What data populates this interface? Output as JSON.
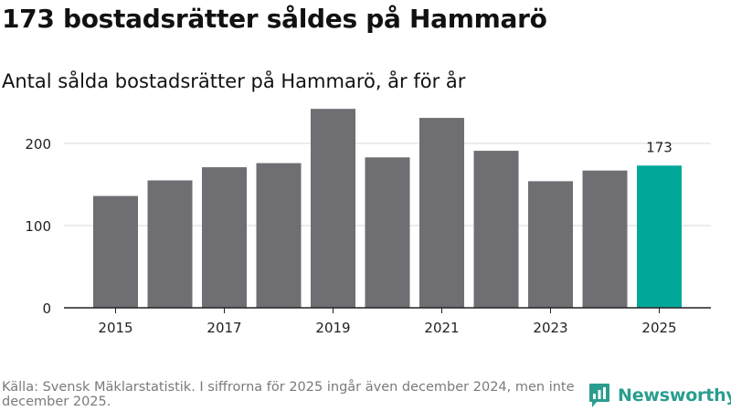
{
  "title": "173 bostadsrätter såldes på Hammarö",
  "subtitle": "Antal sålda bostadsrätter på Hammarö, år för år",
  "footer": {
    "source": "Källa: Svensk Mäklarstatistik. I siffrorna för 2025 ingår även december 2024, men inte december 2025."
  },
  "brand": {
    "name": "Newsworthy"
  },
  "colors": {
    "bar": "#6e6e73",
    "highlight": "#00a89a",
    "grid": "#d9d9d9",
    "axis": "#222222",
    "tick_text": "#222222",
    "brand": "#2a9d8f"
  },
  "chart_data": {
    "type": "bar",
    "title": "Antal sålda bostadsrätter på Hammarö, år för år",
    "xlabel": "",
    "ylabel": "",
    "categories": [
      "2015",
      "2016",
      "2017",
      "2018",
      "2019",
      "2020",
      "2021",
      "2022",
      "2023",
      "2024",
      "2025"
    ],
    "values": [
      136,
      155,
      171,
      176,
      242,
      183,
      231,
      191,
      154,
      167,
      173
    ],
    "x_tick_labels": [
      "2015",
      "2017",
      "2019",
      "2021",
      "2023",
      "2025"
    ],
    "ylim": [
      0,
      250
    ],
    "yticks": [
      0,
      100,
      200
    ],
    "grid": true,
    "highlight_category": "2025",
    "data_labels": [
      {
        "category": "2025",
        "text": "173"
      }
    ]
  }
}
